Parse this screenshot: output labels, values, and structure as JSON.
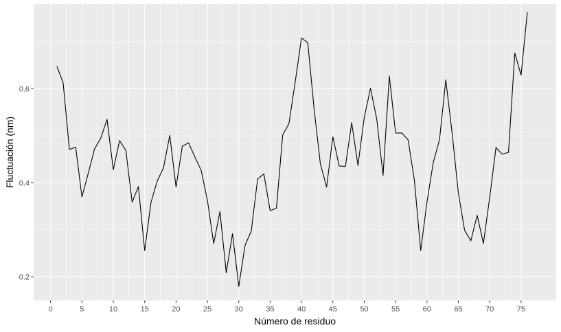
{
  "chart_data": {
    "type": "line",
    "title": "",
    "xlabel": "Número de residuo",
    "ylabel": "Fluctuación (nm)",
    "xlim": [
      -2.7,
      80.6
    ],
    "ylim": [
      0.15,
      0.78
    ],
    "x_ticks": [
      0,
      5,
      10,
      15,
      20,
      25,
      30,
      35,
      40,
      45,
      50,
      55,
      60,
      65,
      70,
      75
    ],
    "y_ticks": [
      0.2,
      0.4,
      0.6
    ],
    "grid": true,
    "legend": "none",
    "colors": {
      "panel": "#ebebeb",
      "grid_major": "#ffffff",
      "line": "#000000",
      "tick_text": "#4d4d4d",
      "tick_mark": "#333333"
    },
    "series": [
      {
        "x": [
          1,
          2,
          3,
          4,
          5,
          6,
          7,
          8,
          9,
          10,
          11,
          12,
          13,
          14,
          15,
          16,
          17,
          18,
          19,
          20,
          21,
          22,
          23,
          24,
          25,
          26,
          27,
          28,
          29,
          30,
          31,
          32,
          33,
          34,
          35,
          36,
          37,
          38,
          39,
          40,
          41,
          42,
          43,
          44,
          45,
          46,
          47,
          48,
          49,
          50,
          51,
          52,
          53,
          54,
          55,
          56,
          57,
          58,
          59,
          60,
          61,
          62,
          63,
          64,
          65,
          66,
          67,
          68,
          69,
          70,
          71,
          72,
          73,
          74,
          75,
          76
        ],
        "values": [
          0.648,
          0.613,
          0.471,
          0.476,
          0.37,
          0.42,
          0.472,
          0.495,
          0.535,
          0.428,
          0.49,
          0.469,
          0.359,
          0.392,
          0.256,
          0.358,
          0.404,
          0.432,
          0.501,
          0.391,
          0.478,
          0.485,
          0.455,
          0.427,
          0.363,
          0.271,
          0.339,
          0.209,
          0.292,
          0.18,
          0.267,
          0.298,
          0.408,
          0.419,
          0.341,
          0.346,
          0.502,
          0.526,
          0.615,
          0.708,
          0.698,
          0.558,
          0.441,
          0.391,
          0.498,
          0.436,
          0.435,
          0.528,
          0.437,
          0.539,
          0.601,
          0.535,
          0.416,
          0.627,
          0.506,
          0.506,
          0.491,
          0.405,
          0.256,
          0.359,
          0.443,
          0.492,
          0.619,
          0.507,
          0.379,
          0.299,
          0.277,
          0.331,
          0.271,
          0.369,
          0.475,
          0.461,
          0.465,
          0.676,
          0.629,
          0.763
        ]
      }
    ]
  }
}
